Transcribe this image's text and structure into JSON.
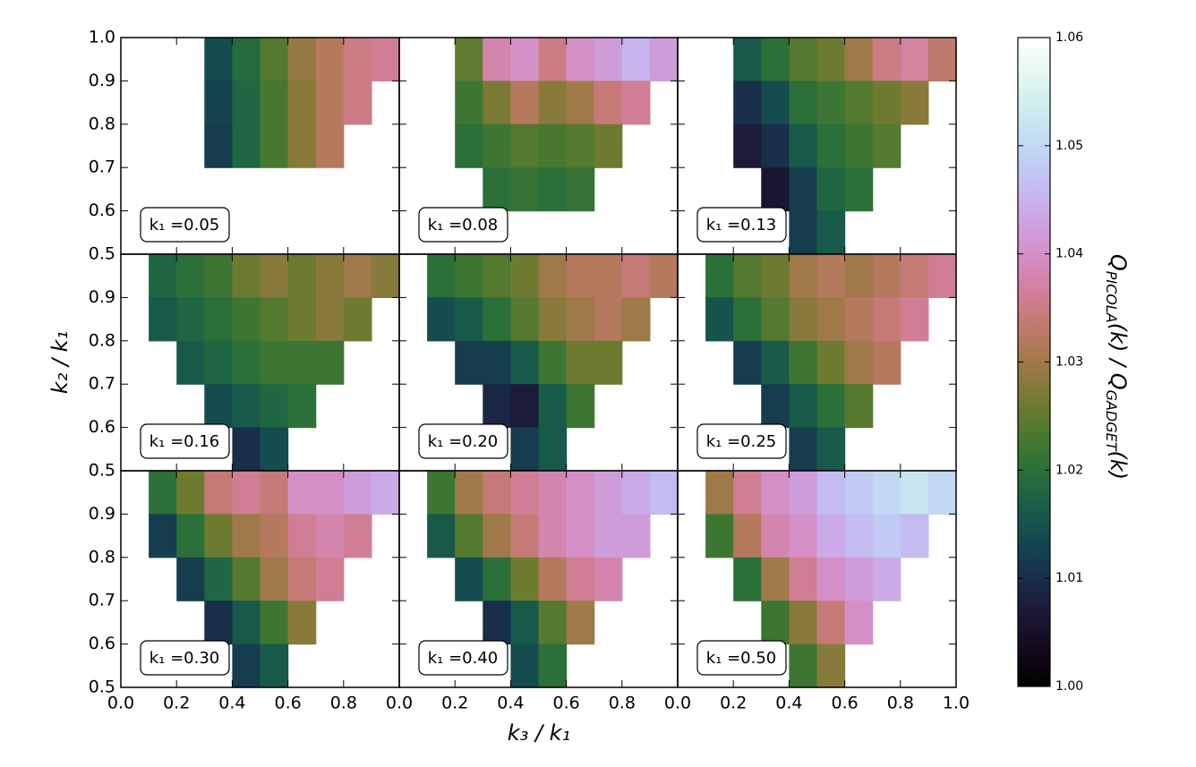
{
  "chart_data": {
    "type": "heatmap",
    "x_label": "k₃ / k₁",
    "y_label": "k₂ / k₁",
    "colorbar_label_parts": [
      "Q",
      "PICOLA",
      "(k) / Q",
      "GADGET",
      "(k)"
    ],
    "colormap": "cubehelix",
    "clim": [
      1.0,
      1.06
    ],
    "cticks": [
      {
        "value": 1.0,
        "label": "1.00"
      },
      1.01,
      1.02,
      1.03,
      1.04,
      1.05,
      1.06
    ],
    "xlim": [
      0,
      1
    ],
    "ylim": [
      0.5,
      1
    ],
    "xticks": [
      {
        "value": 0,
        "label": "0.0"
      },
      0.2,
      0.4,
      0.6,
      0.8,
      {
        "value": 1,
        "label": "1.0"
      }
    ],
    "yticks": [
      0.5,
      0.6,
      0.7,
      0.8,
      0.9,
      {
        "value": 1,
        "label": "1.0"
      }
    ],
    "x": [
      0.05,
      0.15,
      0.25,
      0.35,
      0.45,
      0.55,
      0.65,
      0.75,
      0.85,
      0.95
    ],
    "y": [
      0.95,
      0.85,
      0.75,
      0.65,
      0.55
    ],
    "panels": [
      {
        "label": "k₁ =0.05",
        "z": [
          [
            null,
            null,
            null,
            1.014,
            1.019,
            1.024,
            1.029,
            1.032,
            1.035,
            1.036
          ],
          [
            null,
            null,
            null,
            1.013,
            1.018,
            1.023,
            1.028,
            1.032,
            1.035,
            null
          ],
          [
            null,
            null,
            null,
            1.012,
            1.018,
            1.023,
            1.028,
            1.032,
            null,
            null
          ],
          [
            null,
            null,
            null,
            null,
            null,
            null,
            null,
            null,
            null,
            null
          ],
          [
            null,
            null,
            null,
            null,
            null,
            null,
            null,
            null,
            null,
            null
          ]
        ]
      },
      {
        "label": "k₁ =0.08",
        "z": [
          [
            null,
            null,
            1.025,
            1.038,
            1.04,
            1.035,
            1.04,
            1.042,
            1.045,
            1.042
          ],
          [
            null,
            null,
            1.022,
            1.027,
            1.032,
            1.028,
            1.03,
            1.034,
            1.036,
            null
          ],
          [
            null,
            null,
            1.02,
            1.022,
            1.024,
            1.023,
            1.024,
            1.026,
            null,
            null
          ],
          [
            null,
            null,
            null,
            1.02,
            1.021,
            1.02,
            1.021,
            null,
            null,
            null
          ],
          [
            null,
            null,
            null,
            null,
            null,
            null,
            null,
            null,
            null,
            null
          ]
        ]
      },
      {
        "label": "k₁ =0.13",
        "z": [
          [
            null,
            null,
            1.016,
            1.02,
            1.024,
            1.026,
            1.03,
            1.035,
            1.037,
            1.033
          ],
          [
            null,
            null,
            1.01,
            1.014,
            1.02,
            1.022,
            1.024,
            1.026,
            1.028,
            null
          ],
          [
            null,
            null,
            1.007,
            1.01,
            1.016,
            1.02,
            1.022,
            1.024,
            null,
            null
          ],
          [
            null,
            null,
            null,
            1.006,
            1.012,
            1.018,
            1.02,
            null,
            null,
            null
          ],
          [
            null,
            null,
            null,
            null,
            1.012,
            1.016,
            null,
            null,
            null,
            null
          ]
        ]
      },
      {
        "label": "k₁ =0.16",
        "z": [
          [
            null,
            1.018,
            1.02,
            1.022,
            1.026,
            1.028,
            1.026,
            1.028,
            1.03,
            1.028
          ],
          [
            null,
            1.016,
            1.018,
            1.02,
            1.022,
            1.024,
            1.026,
            1.028,
            1.026,
            null
          ],
          [
            null,
            null,
            1.016,
            1.018,
            1.02,
            1.022,
            1.022,
            1.022,
            null,
            null
          ],
          [
            null,
            null,
            null,
            1.014,
            1.016,
            1.018,
            1.02,
            null,
            null,
            null
          ],
          [
            null,
            null,
            null,
            null,
            1.01,
            1.014,
            null,
            null,
            null,
            null
          ]
        ]
      },
      {
        "label": "k₁ =0.20",
        "z": [
          [
            null,
            1.02,
            1.022,
            1.024,
            1.026,
            1.03,
            1.032,
            1.032,
            1.034,
            1.032
          ],
          [
            null,
            1.014,
            1.016,
            1.02,
            1.024,
            1.028,
            1.03,
            1.032,
            1.03,
            null
          ],
          [
            null,
            null,
            1.012,
            1.012,
            1.016,
            1.022,
            1.026,
            1.026,
            null,
            null
          ],
          [
            null,
            null,
            null,
            1.009,
            1.007,
            1.016,
            1.022,
            null,
            null,
            null
          ],
          [
            null,
            null,
            null,
            null,
            1.012,
            1.016,
            null,
            null,
            null,
            null
          ]
        ]
      },
      {
        "label": "k₁ =0.25",
        "z": [
          [
            null,
            1.02,
            1.024,
            1.026,
            1.03,
            1.032,
            1.03,
            1.032,
            1.034,
            1.036
          ],
          [
            null,
            1.015,
            1.02,
            1.024,
            1.028,
            1.03,
            1.032,
            1.034,
            1.036,
            null
          ],
          [
            null,
            null,
            1.012,
            1.016,
            1.022,
            1.026,
            1.03,
            1.032,
            null,
            null
          ],
          [
            null,
            null,
            null,
            1.012,
            1.016,
            1.02,
            1.024,
            null,
            null,
            null
          ],
          [
            null,
            null,
            null,
            null,
            1.012,
            1.016,
            null,
            null,
            null,
            null
          ]
        ]
      },
      {
        "label": "k₁ =0.30",
        "z": [
          [
            null,
            1.02,
            1.026,
            1.034,
            1.036,
            1.034,
            1.04,
            1.04,
            1.042,
            1.044
          ],
          [
            null,
            1.012,
            1.02,
            1.026,
            1.03,
            1.032,
            1.036,
            1.038,
            1.036,
            null
          ],
          [
            null,
            null,
            1.012,
            1.018,
            1.024,
            1.03,
            1.034,
            1.036,
            null,
            null
          ],
          [
            null,
            null,
            null,
            1.01,
            1.016,
            1.022,
            1.028,
            null,
            null,
            null
          ],
          [
            null,
            null,
            null,
            null,
            1.012,
            1.016,
            null,
            null,
            null,
            null
          ]
        ]
      },
      {
        "label": "k₁ =0.40",
        "z": [
          [
            null,
            1.022,
            1.03,
            1.034,
            1.036,
            1.038,
            1.04,
            1.042,
            1.044,
            1.046
          ],
          [
            null,
            1.016,
            1.024,
            1.03,
            1.034,
            1.038,
            1.04,
            1.042,
            1.042,
            null
          ],
          [
            null,
            null,
            1.014,
            1.02,
            1.026,
            1.032,
            1.036,
            1.038,
            null,
            null
          ],
          [
            null,
            null,
            null,
            1.01,
            1.016,
            1.024,
            1.03,
            null,
            null,
            null
          ],
          [
            null,
            null,
            null,
            null,
            1.014,
            1.02,
            null,
            null,
            null,
            null
          ]
        ]
      },
      {
        "label": "k₁ =0.50",
        "z": [
          [
            null,
            1.03,
            1.036,
            1.04,
            1.042,
            1.046,
            1.048,
            1.05,
            1.052,
            1.05
          ],
          [
            null,
            1.022,
            1.032,
            1.038,
            1.04,
            1.044,
            1.046,
            1.048,
            1.046,
            null
          ],
          [
            null,
            null,
            1.02,
            1.03,
            1.036,
            1.04,
            1.042,
            1.044,
            null,
            null
          ],
          [
            null,
            null,
            null,
            1.022,
            1.028,
            1.034,
            1.04,
            null,
            null,
            null
          ],
          [
            null,
            null,
            null,
            null,
            1.022,
            1.028,
            null,
            null,
            null,
            null
          ]
        ]
      }
    ]
  }
}
